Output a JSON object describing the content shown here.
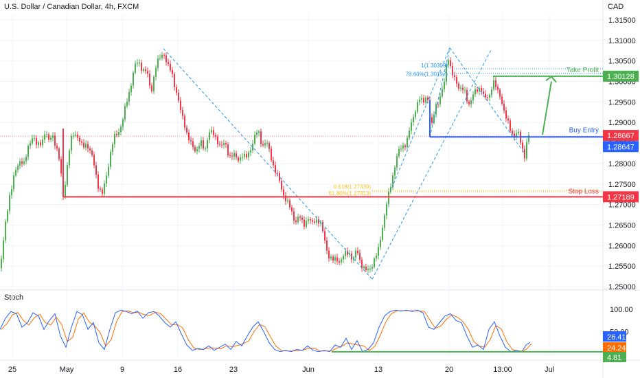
{
  "header": {
    "title": "U.S. Dollar / Canadian Dollar, 4h, FXCM",
    "currency": "CAD",
    "indicator": "Stoch"
  },
  "colors": {
    "up": "#26a69a",
    "down": "#ef5350",
    "candle_up": "#4caf50",
    "candle_down": "#f23645",
    "support": "#f23645",
    "entry": "#2962ff",
    "takeprofit": "#4caf50",
    "fib": "#f7c21b",
    "pattern": "#2196f3",
    "stoch_k": "#2962ff",
    "stoch_d": "#ff6d00",
    "grid": "#f0f3fa"
  },
  "chart_data": {
    "type": "candlestick",
    "price_axis": {
      "min": 1.25,
      "max": 1.315,
      "ticks": [
        "1.31500",
        "1.31000",
        "1.30500",
        "1.30000",
        "1.29500",
        "1.29000",
        "1.28500",
        "1.28000",
        "1.27500",
        "1.27000",
        "1.26500",
        "1.26000",
        "1.25500",
        "1.25000"
      ]
    },
    "time_axis": {
      "ticks": [
        "25",
        "May",
        "9",
        "16",
        "23",
        "Jun",
        "13",
        "20",
        "13:00",
        "Jul"
      ]
    },
    "price_path": [
      [
        0,
        1.2545
      ],
      [
        4,
        1.2595
      ],
      [
        9,
        1.2665
      ],
      [
        14,
        1.2725
      ],
      [
        20,
        1.2765
      ],
      [
        25,
        1.279
      ],
      [
        30,
        1.2812
      ],
      [
        36,
        1.2798
      ],
      [
        42,
        1.2845
      ],
      [
        48,
        1.2872
      ],
      [
        54,
        1.2838
      ],
      [
        60,
        1.2852
      ],
      [
        66,
        1.288
      ],
      [
        71,
        1.285
      ],
      [
        76,
        1.2875
      ],
      [
        82,
        1.284
      ],
      [
        88,
        1.279
      ],
      [
        92,
        1.2722
      ],
      [
        97,
        1.278
      ],
      [
        103,
        1.2855
      ],
      [
        109,
        1.288
      ],
      [
        114,
        1.286
      ],
      [
        120,
        1.2838
      ],
      [
        126,
        1.2852
      ],
      [
        132,
        1.2825
      ],
      [
        138,
        1.279
      ],
      [
        144,
        1.274
      ],
      [
        149,
        1.2723
      ],
      [
        154,
        1.2762
      ],
      [
        160,
        1.282
      ],
      [
        166,
        1.286
      ],
      [
        172,
        1.2878
      ],
      [
        178,
        1.29
      ],
      [
        184,
        1.2945
      ],
      [
        190,
        1.299
      ],
      [
        196,
        1.3035
      ],
      [
        202,
        1.3048
      ],
      [
        208,
        1.303
      ],
      [
        214,
        1.302
      ],
      [
        220,
        1.2975
      ],
      [
        226,
        1.303
      ],
      [
        232,
        1.3055
      ],
      [
        238,
        1.3075
      ],
      [
        244,
        1.3035
      ],
      [
        250,
        1.3025
      ],
      [
        256,
        1.298
      ],
      [
        262,
        1.2932
      ],
      [
        268,
        1.2905
      ],
      [
        274,
        1.286
      ],
      [
        280,
        1.284
      ],
      [
        286,
        1.2835
      ],
      [
        292,
        1.285
      ],
      [
        298,
        1.283
      ],
      [
        304,
        1.288
      ],
      [
        310,
        1.287
      ],
      [
        316,
        1.286
      ],
      [
        322,
        1.284
      ],
      [
        328,
        1.2848
      ],
      [
        334,
        1.282
      ],
      [
        340,
        1.2818
      ],
      [
        346,
        1.281
      ],
      [
        352,
        1.2822
      ],
      [
        358,
        1.281
      ],
      [
        364,
        1.2835
      ],
      [
        370,
        1.286
      ],
      [
        376,
        1.288
      ],
      [
        382,
        1.2845
      ],
      [
        388,
        1.285
      ],
      [
        394,
        1.2822
      ],
      [
        400,
        1.2785
      ],
      [
        406,
        1.276
      ],
      [
        412,
        1.273
      ],
      [
        418,
        1.2705
      ],
      [
        424,
        1.2685
      ],
      [
        430,
        1.266
      ],
      [
        436,
        1.2668
      ],
      [
        442,
        1.2652
      ],
      [
        448,
        1.2668
      ],
      [
        454,
        1.265
      ],
      [
        460,
        1.2668
      ],
      [
        466,
        1.2655
      ],
      [
        472,
        1.262
      ],
      [
        478,
        1.2578
      ],
      [
        484,
        1.256
      ],
      [
        490,
        1.257
      ],
      [
        496,
        1.256
      ],
      [
        502,
        1.2578
      ],
      [
        508,
        1.2588
      ],
      [
        514,
        1.256
      ],
      [
        520,
        1.2592
      ],
      [
        526,
        1.2555
      ],
      [
        532,
        1.2535
      ],
      [
        538,
        1.2545
      ],
      [
        544,
        1.256
      ],
      [
        550,
        1.258
      ],
      [
        556,
        1.264
      ],
      [
        562,
        1.269
      ],
      [
        568,
        1.274
      ],
      [
        574,
        1.279
      ],
      [
        580,
        1.2825
      ],
      [
        586,
        1.2845
      ],
      [
        592,
        1.285
      ],
      [
        598,
        1.289
      ],
      [
        604,
        1.293
      ],
      [
        610,
        1.2955
      ],
      [
        616,
        1.295
      ],
      [
        622,
        1.2972
      ],
      [
        628,
        1.288
      ],
      [
        634,
        1.2945
      ],
      [
        640,
        1.2955
      ],
      [
        646,
        1.2985
      ],
      [
        652,
        1.307
      ],
      [
        658,
        1.3015
      ],
      [
        664,
        1.3
      ],
      [
        670,
        1.2985
      ],
      [
        676,
        1.2975
      ],
      [
        682,
        1.2945
      ],
      [
        688,
        1.2965
      ],
      [
        694,
        1.2975
      ],
      [
        700,
        1.299
      ],
      [
        706,
        1.2955
      ],
      [
        712,
        1.296
      ],
      [
        718,
        1.3005
      ],
      [
        724,
        1.2975
      ],
      [
        730,
        1.296
      ],
      [
        736,
        1.2915
      ],
      [
        742,
        1.2885
      ],
      [
        748,
        1.287
      ],
      [
        754,
        1.2875
      ],
      [
        760,
        1.284
      ],
      [
        764,
        1.2822
      ],
      [
        768,
        1.286
      ],
      [
        772,
        1.287
      ]
    ],
    "levels": [
      {
        "label": "Take Profit",
        "price": 1.30128,
        "price_label": "1.30128",
        "color": "#4caf50"
      },
      {
        "label": "Buy Entry",
        "price": 1.28647,
        "price_label": "1.28647",
        "color": "#2962ff"
      },
      {
        "label": "Stop Loss",
        "price": 1.27189,
        "price_label": "1.27189",
        "color": "#f23645"
      },
      {
        "label": "",
        "price": 1.28667,
        "price_label": "1.28667",
        "color": "#f23645"
      }
    ],
    "fib_labels": {
      "upper_1": "1(1.30309)",
      "upper_786": "78.60%(1.30197)",
      "lower_618": "0.618(1.27339)",
      "lower_6180": "61.80%(1.27313)"
    },
    "stoch": {
      "ticks": [
        "100.00",
        "50.00"
      ],
      "levels": [
        {
          "value": 26.41,
          "label": "26.41",
          "color": "#2962ff"
        },
        {
          "value": 24.24,
          "label": "24.24",
          "color": "#ff6d00"
        },
        {
          "value": 4.81,
          "label": "4.81",
          "color": "#4caf50"
        }
      ],
      "k": [
        [
          0,
          55
        ],
        [
          8,
          80
        ],
        [
          16,
          95
        ],
        [
          24,
          90
        ],
        [
          32,
          60
        ],
        [
          40,
          70
        ],
        [
          48,
          92
        ],
        [
          56,
          85
        ],
        [
          64,
          55
        ],
        [
          72,
          75
        ],
        [
          80,
          90
        ],
        [
          88,
          40
        ],
        [
          96,
          15
        ],
        [
          104,
          60
        ],
        [
          112,
          95
        ],
        [
          120,
          88
        ],
        [
          128,
          55
        ],
        [
          136,
          70
        ],
        [
          144,
          25
        ],
        [
          152,
          10
        ],
        [
          160,
          55
        ],
        [
          168,
          92
        ],
        [
          176,
          98
        ],
        [
          184,
          95
        ],
        [
          192,
          90
        ],
        [
          200,
          96
        ],
        [
          208,
          80
        ],
        [
          216,
          92
        ],
        [
          224,
          95
        ],
        [
          232,
          85
        ],
        [
          240,
          70
        ],
        [
          248,
          60
        ],
        [
          256,
          72
        ],
        [
          264,
          45
        ],
        [
          272,
          20
        ],
        [
          280,
          8
        ],
        [
          288,
          12
        ],
        [
          296,
          10
        ],
        [
          304,
          18
        ],
        [
          312,
          8
        ],
        [
          320,
          15
        ],
        [
          328,
          22
        ],
        [
          336,
          10
        ],
        [
          344,
          28
        ],
        [
          352,
          18
        ],
        [
          360,
          40
        ],
        [
          368,
          60
        ],
        [
          376,
          72
        ],
        [
          384,
          50
        ],
        [
          392,
          25
        ],
        [
          400,
          10
        ],
        [
          408,
          5
        ],
        [
          416,
          8
        ],
        [
          424,
          5
        ],
        [
          432,
          10
        ],
        [
          440,
          8
        ],
        [
          448,
          18
        ],
        [
          456,
          8
        ],
        [
          464,
          5
        ],
        [
          472,
          8
        ],
        [
          480,
          5
        ],
        [
          488,
          20
        ],
        [
          496,
          15
        ],
        [
          504,
          35
        ],
        [
          512,
          10
        ],
        [
          520,
          30
        ],
        [
          528,
          5
        ],
        [
          536,
          10
        ],
        [
          544,
          25
        ],
        [
          552,
          60
        ],
        [
          560,
          85
        ],
        [
          568,
          95
        ],
        [
          576,
          98
        ],
        [
          584,
          96
        ],
        [
          592,
          98
        ],
        [
          600,
          95
        ],
        [
          608,
          98
        ],
        [
          616,
          92
        ],
        [
          624,
          60
        ],
        [
          632,
          55
        ],
        [
          640,
          70
        ],
        [
          648,
          85
        ],
        [
          656,
          90
        ],
        [
          664,
          75
        ],
        [
          672,
          70
        ],
        [
          680,
          40
        ],
        [
          688,
          15
        ],
        [
          696,
          20
        ],
        [
          704,
          10
        ],
        [
          712,
          55
        ],
        [
          720,
          72
        ],
        [
          728,
          40
        ],
        [
          736,
          15
        ],
        [
          744,
          5
        ],
        [
          752,
          8
        ],
        [
          760,
          5
        ],
        [
          766,
          20
        ],
        [
          772,
          26
        ]
      ]
    }
  }
}
